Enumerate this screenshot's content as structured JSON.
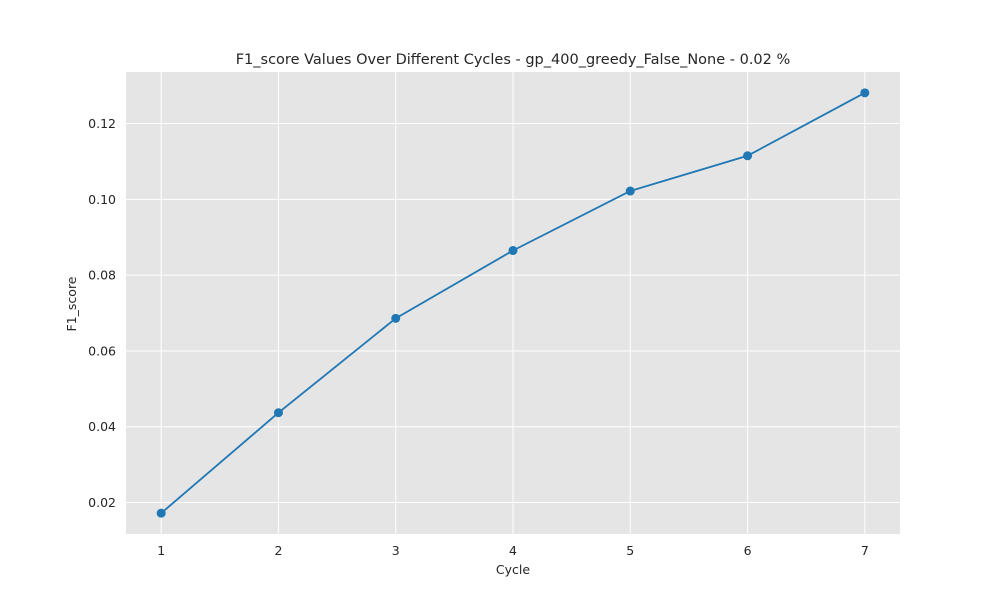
{
  "chart_data": {
    "type": "line",
    "title": "F1_score Values Over Different Cycles - gp_400_greedy_False_None - 0.02 %",
    "xlabel": "Cycle",
    "ylabel": "F1_score",
    "x": [
      1,
      2,
      3,
      4,
      5,
      6,
      7
    ],
    "series": [
      {
        "values": [
          0.0172,
          0.0437,
          0.0686,
          0.0865,
          0.1022,
          0.1115,
          0.1281
        ]
      }
    ],
    "xlim": [
      0.7,
      7.3
    ],
    "ylim": [
      0.0117,
      0.1336
    ],
    "xticks": [
      1,
      2,
      3,
      4,
      5,
      6,
      7
    ],
    "xtick_labels": [
      "1",
      "2",
      "3",
      "4",
      "5",
      "6",
      "7"
    ],
    "yticks": [
      0.02,
      0.04,
      0.06,
      0.08,
      0.1,
      0.12
    ],
    "ytick_labels": [
      "0.02",
      "0.04",
      "0.06",
      "0.08",
      "0.10",
      "0.12"
    ],
    "grid": true,
    "line_color": "#1f77b4",
    "background_color": "#e5e5e5",
    "grid_color": "#ffffff"
  }
}
